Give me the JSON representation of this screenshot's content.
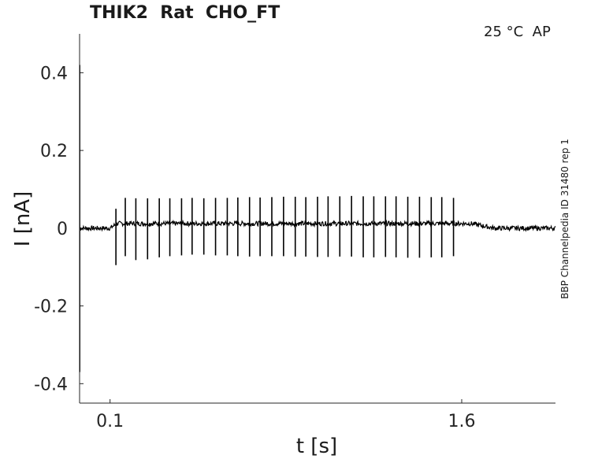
{
  "header": {
    "title": "THIK2  Rat  CHO_FT",
    "conditions": "25 °C  AP",
    "side_label": "BBP Channelpedia ID 31480 rep 1"
  },
  "chart_data": {
    "type": "line",
    "title": "THIK2  Rat  CHO_FT",
    "xlabel": "t [s]",
    "ylabel": "I [nA]",
    "xlim": [
      -0.03,
      2.0
    ],
    "ylim": [
      -0.45,
      0.5
    ],
    "xticks": [
      0.1,
      1.6
    ],
    "xtick_labels": [
      "0.1",
      "1.6"
    ],
    "yticks": [
      0.4,
      0.2,
      0,
      -0.2,
      -0.4
    ],
    "ytick_labels": [
      "0.4",
      "0.2",
      "0",
      "-0.2",
      "-0.4"
    ],
    "grid": false,
    "series_color": "#000000",
    "baseline_nA": 0.0,
    "stimulus_window_s": [
      0.1,
      1.6
    ],
    "holding_current_during_stimulus_nA": 0.012,
    "initial_transient_nA": {
      "max": 0.42,
      "min": -0.37
    },
    "spikes": {
      "times_s": [
        0.125,
        0.165,
        0.21,
        0.26,
        0.31,
        0.355,
        0.405,
        0.45,
        0.5,
        0.55,
        0.6,
        0.645,
        0.695,
        0.74,
        0.79,
        0.84,
        0.89,
        0.935,
        0.985,
        1.03,
        1.08,
        1.13,
        1.18,
        1.225,
        1.275,
        1.32,
        1.37,
        1.42,
        1.47,
        1.515,
        1.565
      ],
      "peaks_nA": [
        0.05,
        0.078,
        0.077,
        0.077,
        0.077,
        0.077,
        0.077,
        0.078,
        0.077,
        0.078,
        0.078,
        0.079,
        0.08,
        0.079,
        0.08,
        0.081,
        0.081,
        0.08,
        0.081,
        0.082,
        0.082,
        0.083,
        0.082,
        0.082,
        0.082,
        0.082,
        0.081,
        0.081,
        0.08,
        0.08,
        0.078
      ],
      "troughs_nA": [
        -0.095,
        -0.072,
        -0.082,
        -0.08,
        -0.075,
        -0.072,
        -0.07,
        -0.068,
        -0.068,
        -0.07,
        -0.07,
        -0.072,
        -0.073,
        -0.072,
        -0.072,
        -0.072,
        -0.073,
        -0.073,
        -0.074,
        -0.074,
        -0.073,
        -0.073,
        -0.075,
        -0.075,
        -0.074,
        -0.075,
        -0.076,
        -0.076,
        -0.075,
        -0.075,
        -0.072
      ]
    }
  }
}
